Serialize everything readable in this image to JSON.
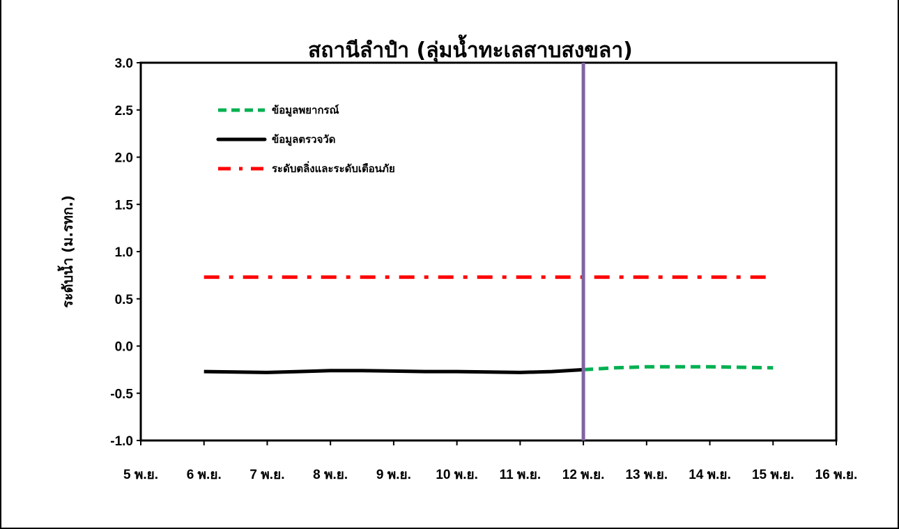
{
  "chart_data": {
    "type": "line",
    "title": "สถานีลำปำ (ลุ่มน้ำทะเลสาบสงขลา)",
    "ylabel": "ระดับน้ำ (ม.รทก.)",
    "xlabel": "",
    "ylim": [
      -1.0,
      3.0
    ],
    "y_ticks": [
      "-1.0",
      "-0.5",
      "0.0",
      "0.5",
      "1.0",
      "1.5",
      "2.0",
      "2.5",
      "3.0"
    ],
    "x_range": [
      5,
      16
    ],
    "x_ticks": [
      "5 พ.ย.",
      "6 พ.ย.",
      "7 พ.ย.",
      "8 พ.ย.",
      "9 พ.ย.",
      "10 พ.ย.",
      "11 พ.ย.",
      "12 พ.ย.",
      "13 พ.ย.",
      "14 พ.ย.",
      "15 พ.ย.",
      "16 พ.ย."
    ],
    "current_time_marker": 12,
    "legend_position": "top-left",
    "series": [
      {
        "name": "ข้อมูลพยากรณ์",
        "color": "#00b050",
        "style": "dashed",
        "x": [
          12,
          12.5,
          13,
          13.5,
          14,
          14.5,
          15
        ],
        "y": [
          -0.25,
          -0.23,
          -0.22,
          -0.22,
          -0.22,
          -0.225,
          -0.23
        ]
      },
      {
        "name": "ข้อมูลตรวจวัด",
        "color": "#000000",
        "style": "solid",
        "x": [
          6,
          6.5,
          7,
          7.5,
          8,
          8.5,
          9,
          9.5,
          10,
          10.5,
          11,
          11.5,
          12
        ],
        "y": [
          -0.27,
          -0.275,
          -0.28,
          -0.27,
          -0.26,
          -0.26,
          -0.265,
          -0.27,
          -0.27,
          -0.275,
          -0.28,
          -0.27,
          -0.25
        ]
      },
      {
        "name": "ระดับตลิ่งและระดับเตือนภัย",
        "color": "#ff0000",
        "style": "dash-dot",
        "x": [
          6,
          15
        ],
        "y": [
          0.73,
          0.73
        ]
      }
    ],
    "marker_color": "#8064a2"
  }
}
